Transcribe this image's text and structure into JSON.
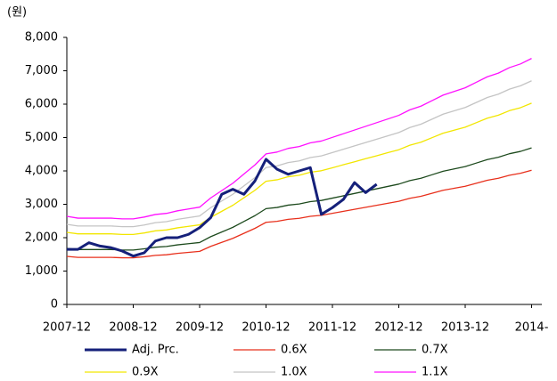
{
  "chart_data": {
    "type": "line",
    "unit_label": "(원)",
    "categories": [
      "2007-12",
      null,
      null,
      null,
      null,
      null,
      "2008-12",
      null,
      null,
      null,
      null,
      null,
      "2009-12",
      null,
      null,
      null,
      null,
      null,
      "2010-12",
      null,
      null,
      null,
      null,
      null,
      "2011-12",
      null,
      null,
      null,
      null,
      null,
      "2012-12",
      null,
      null,
      null,
      null,
      null,
      "2013-12",
      null,
      null,
      null,
      null,
      null,
      "2014-"
    ],
    "ylim": [
      0,
      8000
    ],
    "yticks": [
      0,
      {
        "value": 1000,
        "label": "1,000"
      },
      {
        "value": 2000,
        "label": "2,000"
      },
      {
        "value": 3000,
        "label": "3,000"
      },
      {
        "value": 4000,
        "label": "4,000"
      },
      {
        "value": 5000,
        "label": "5,000"
      },
      {
        "value": 6000,
        "label": "6,000"
      },
      {
        "value": 7000,
        "label": "7,000"
      },
      {
        "value": 8000,
        "label": "8,000"
      }
    ],
    "grid": false,
    "series": [
      {
        "name": "Adj. Prc.",
        "color": "#15207a",
        "values": [
          1650,
          1650,
          1850,
          1750,
          1700,
          1600,
          1450,
          1550,
          1900,
          2000,
          2000,
          2100,
          2300,
          2600,
          3300,
          3450,
          3300,
          3700,
          4350,
          4050,
          3900,
          4000,
          4100,
          2700,
          2900,
          3150,
          3650,
          3350,
          3600,
          null,
          null,
          null,
          null,
          null,
          null,
          null,
          null,
          null,
          null,
          null,
          null,
          null,
          null
        ]
      },
      {
        "name": "0.6X",
        "color": "#e8301c",
        "values": [
          1440,
          1410,
          1410,
          1410,
          1410,
          1398,
          1398,
          1428,
          1470,
          1488,
          1530,
          1560,
          1590,
          1740,
          1860,
          1980,
          2130,
          2280,
          2460,
          2490,
          2550,
          2580,
          2640,
          2670,
          2730,
          2790,
          2850,
          2910,
          2970,
          3030,
          3090,
          3180,
          3240,
          3330,
          3420,
          3480,
          3540,
          3630,
          3720,
          3780,
          3870,
          3930,
          4020
        ]
      },
      {
        "name": "0.7X",
        "color": "#1d4a1d",
        "values": [
          1680,
          1645,
          1645,
          1645,
          1645,
          1631,
          1631,
          1666,
          1715,
          1736,
          1785,
          1820,
          1855,
          2030,
          2170,
          2310,
          2485,
          2660,
          2870,
          2905,
          2975,
          3010,
          3080,
          3115,
          3185,
          3255,
          3325,
          3395,
          3465,
          3535,
          3605,
          3710,
          3780,
          3885,
          3990,
          4060,
          4130,
          4235,
          4340,
          4410,
          4515,
          4585,
          4690
        ]
      },
      {
        "name": "0.9X",
        "color": "#f2e600",
        "values": [
          2160,
          2115,
          2115,
          2115,
          2115,
          2097,
          2097,
          2142,
          2205,
          2232,
          2295,
          2340,
          2385,
          2610,
          2790,
          2970,
          3195,
          3420,
          3690,
          3735,
          3825,
          3870,
          3960,
          4005,
          4095,
          4185,
          4275,
          4365,
          4455,
          4545,
          4635,
          4770,
          4860,
          4995,
          5130,
          5220,
          5310,
          5445,
          5580,
          5670,
          5805,
          5895,
          6030
        ]
      },
      {
        "name": "1.0X",
        "color": "#c4c4c4",
        "values": [
          2400,
          2350,
          2350,
          2350,
          2350,
          2330,
          2330,
          2380,
          2450,
          2480,
          2550,
          2600,
          2650,
          2900,
          3100,
          3300,
          3550,
          3800,
          4100,
          4150,
          4250,
          4300,
          4400,
          4450,
          4550,
          4650,
          4750,
          4850,
          4950,
          5050,
          5150,
          5300,
          5400,
          5550,
          5700,
          5800,
          5900,
          6050,
          6200,
          6300,
          6450,
          6550,
          6700
        ]
      },
      {
        "name": "1.1X",
        "color": "#ff10ff",
        "values": [
          2640,
          2585,
          2585,
          2585,
          2585,
          2563,
          2563,
          2618,
          2695,
          2728,
          2805,
          2860,
          2915,
          3190,
          3410,
          3630,
          3905,
          4180,
          4510,
          4565,
          4675,
          4730,
          4840,
          4895,
          5005,
          5115,
          5225,
          5335,
          5445,
          5555,
          5665,
          5830,
          5940,
          6105,
          6270,
          6380,
          6490,
          6655,
          6820,
          6930,
          7095,
          7205,
          7370
        ]
      }
    ]
  }
}
